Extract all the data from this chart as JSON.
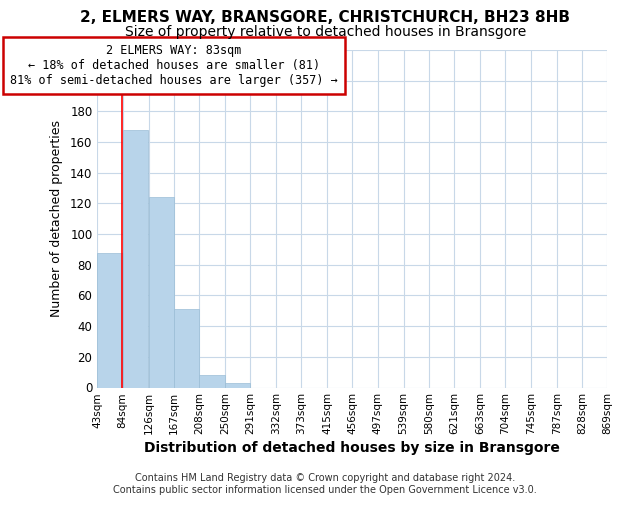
{
  "title": "2, ELMERS WAY, BRANSGORE, CHRISTCHURCH, BH23 8HB",
  "subtitle": "Size of property relative to detached houses in Bransgore",
  "xlabel": "Distribution of detached houses by size in Bransgore",
  "ylabel": "Number of detached properties",
  "bar_color": "#b8d4ea",
  "bar_edge_color": "#9bbdd6",
  "bins": [
    43,
    84,
    126,
    167,
    208,
    250,
    291,
    332,
    373,
    415,
    456,
    497,
    539,
    580,
    621,
    663,
    704,
    745,
    787,
    828,
    869
  ],
  "bar_heights": [
    88,
    168,
    124,
    51,
    8,
    3,
    0,
    0,
    0,
    0,
    0,
    0,
    0,
    0,
    0,
    0,
    0,
    0,
    0,
    0
  ],
  "tick_labels": [
    "43sqm",
    "84sqm",
    "126sqm",
    "167sqm",
    "208sqm",
    "250sqm",
    "291sqm",
    "332sqm",
    "373sqm",
    "415sqm",
    "456sqm",
    "497sqm",
    "539sqm",
    "580sqm",
    "621sqm",
    "663sqm",
    "704sqm",
    "745sqm",
    "787sqm",
    "828sqm",
    "869sqm"
  ],
  "red_line_x": 83,
  "ylim": [
    0,
    220
  ],
  "yticks": [
    0,
    20,
    40,
    60,
    80,
    100,
    120,
    140,
    160,
    180,
    200,
    220
  ],
  "annotation_title": "2 ELMERS WAY: 83sqm",
  "annotation_line1": "← 18% of detached houses are smaller (81)",
  "annotation_line2": "81% of semi-detached houses are larger (357) →",
  "annotation_box_color": "#ffffff",
  "annotation_box_edge_color": "#cc0000",
  "footer_line1": "Contains HM Land Registry data © Crown copyright and database right 2024.",
  "footer_line2": "Contains public sector information licensed under the Open Government Licence v3.0.",
  "background_color": "#ffffff",
  "grid_color": "#c8d8e8",
  "title_fontsize": 11,
  "subtitle_fontsize": 10,
  "xlabel_fontsize": 10,
  "ylabel_fontsize": 9,
  "footer_fontsize": 7
}
